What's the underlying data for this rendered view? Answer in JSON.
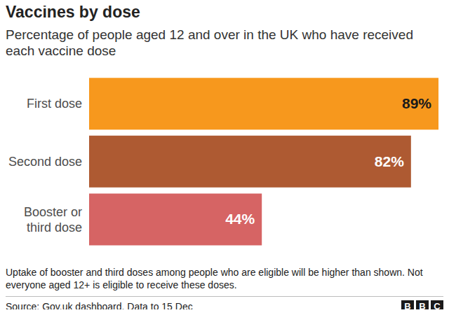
{
  "chart_data": {
    "type": "bar",
    "title": "Vaccines by dose",
    "subtitle": "Percentage of people aged 12 and over in the UK who have received each vaccine dose",
    "categories": [
      "First dose",
      "Second dose",
      "Booster or third dose"
    ],
    "values": [
      89,
      82,
      44
    ],
    "value_labels": [
      "89%",
      "82%",
      "44%"
    ],
    "colors": [
      "#f7981d",
      "#ae5a32",
      "#d66464"
    ],
    "orientation": "horizontal",
    "data_labels": true,
    "tick_labels": "y",
    "grid": false,
    "annotations": [
      "Uptake of booster and third doses among people who are eligible will be higher than shown. Not everyone aged 12+ is eligible to receive these doses."
    ],
    "source": "Source: Gov.uk dashboard. Data to 15 Dec",
    "logo": "BBC"
  }
}
